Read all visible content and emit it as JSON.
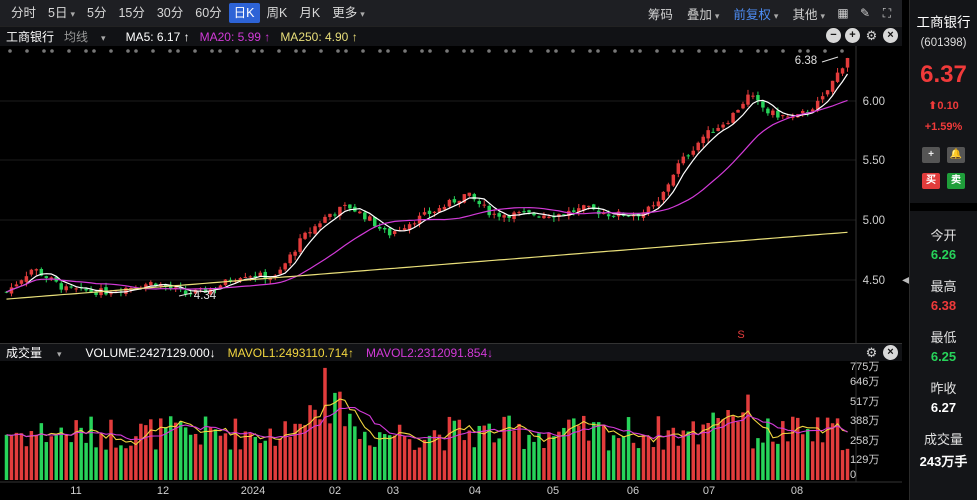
{
  "toolbar": {
    "periods": [
      "分时",
      "5日",
      "5分",
      "15分",
      "30分",
      "60分",
      "日K",
      "周K",
      "月K",
      "更多"
    ],
    "active_period": "日K",
    "right_items": [
      "筹码",
      "叠加",
      "前复权",
      "其他"
    ]
  },
  "main_chart": {
    "stock_name": "工商银行",
    "indicator": "均线",
    "ma5_label": "MA5: 6.17 ↑",
    "ma20_label": "MA20: 5.99 ↑",
    "ma250_label": "MA250: 4.90 ↑",
    "high_marker": "6.38",
    "low_marker": "4.34",
    "signal_marker": "S"
  },
  "volume_chart": {
    "title": "成交量",
    "volume_label": "VOLUME:2427129.000↓",
    "mavol1_label": "MAVOL1:2493110.714↑",
    "mavol2_label": "MAVOL2:2312091.854↓"
  },
  "colors": {
    "up": "#e23c3c",
    "down": "#27d35a",
    "ma5": "#ffffff",
    "ma20": "#d23ad8",
    "ma250": "#e9df7a",
    "mavol1": "#f2d640",
    "mavol2": "#d23ad8",
    "accent": "#2d63d6"
  },
  "chart_data": {
    "type": "candlestick",
    "y_ticks_price": [
      "6.00",
      "5.50",
      "5.00",
      "4.50"
    ],
    "y_ticks_volume": [
      "775万",
      "646万",
      "517万",
      "388万",
      "258万",
      "129万",
      "0"
    ],
    "x_ticks": [
      "11",
      "12",
      "2024",
      "02",
      "03",
      "04",
      "05",
      "06",
      "07",
      "08"
    ]
  },
  "side_panel": {
    "name": "工商银行",
    "code": "(601398)",
    "price": "6.37",
    "change": "0.10",
    "change_pct": "+1.59%",
    "buy_label": "买",
    "sell_label": "卖",
    "stats": [
      {
        "label": "今开",
        "value": "6.26",
        "tone": "green"
      },
      {
        "label": "最高",
        "value": "6.38",
        "tone": "red"
      },
      {
        "label": "最低",
        "value": "6.25",
        "tone": "green"
      },
      {
        "label": "昨收",
        "value": "6.27",
        "tone": "white"
      },
      {
        "label": "成交量",
        "value": "243万手",
        "tone": "white"
      }
    ]
  }
}
